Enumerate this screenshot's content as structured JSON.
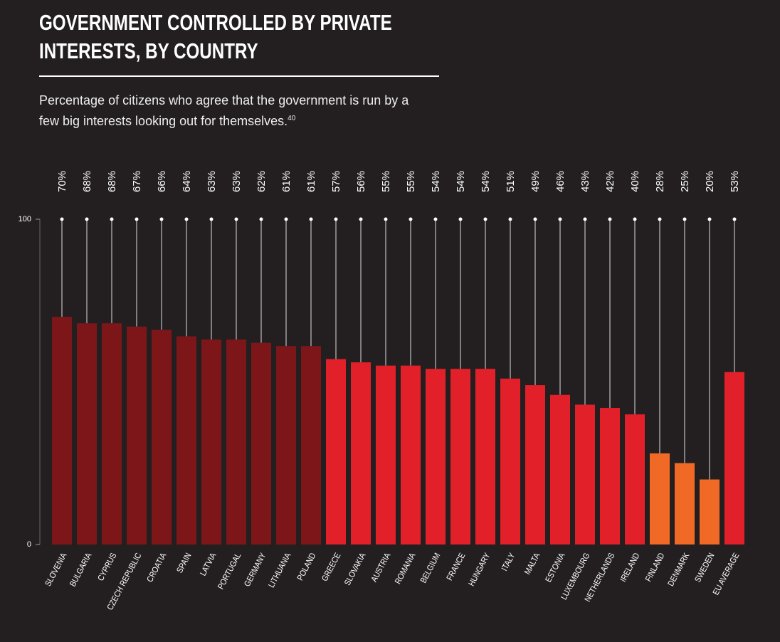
{
  "chart_data": {
    "type": "bar",
    "title": "GOVERNMENT CONTROLLED BY PRIVATE INTERESTS, BY COUNTRY",
    "subtitle": "Percentage of citizens who agree that the government is run by a few big interests looking out for themselves.",
    "subtitle_note": "40",
    "categories": [
      "SLOVENIA",
      "BULGARIA",
      "CYPRUS",
      "CZECH REPUBLIC",
      "CROATIA",
      "SPAIN",
      "LATVIA",
      "PORTUGAL",
      "GERMANY",
      "LITHUANIA",
      "POLAND",
      "GREECE",
      "SLOVAKIA",
      "AUSTRIA",
      "ROMANIA",
      "BELGIUM",
      "FRANCE",
      "HUNGARY",
      "ITALY",
      "MALTA",
      "ESTONIA",
      "LUXEMBOURG",
      "NETHERLANDS",
      "IRELAND",
      "FINLAND",
      "DENMARK",
      "SWEDEN",
      "EU AVERAGE"
    ],
    "values": [
      70,
      68,
      68,
      67,
      66,
      64,
      63,
      63,
      62,
      61,
      61,
      57,
      56,
      55,
      55,
      54,
      54,
      54,
      51,
      49,
      46,
      43,
      42,
      40,
      28,
      25,
      20,
      53
    ],
    "value_labels": [
      "70%",
      "68%",
      "68%",
      "67%",
      "66%",
      "64%",
      "63%",
      "63%",
      "62%",
      "61%",
      "61%",
      "57%",
      "56%",
      "55%",
      "55%",
      "54%",
      "54%",
      "54%",
      "51%",
      "49%",
      "46%",
      "43%",
      "42%",
      "40%",
      "28%",
      "25%",
      "20%",
      "53%"
    ],
    "colors": [
      "#7d1619",
      "#7d1619",
      "#7d1619",
      "#7d1619",
      "#7d1619",
      "#7d1619",
      "#7d1619",
      "#7d1619",
      "#7d1619",
      "#7d1619",
      "#7d1619",
      "#e2202a",
      "#e2202a",
      "#e2202a",
      "#e2202a",
      "#e2202a",
      "#e2202a",
      "#e2202a",
      "#e2202a",
      "#e2202a",
      "#e2202a",
      "#e2202a",
      "#e2202a",
      "#e2202a",
      "#f06a26",
      "#f06a26",
      "#f06a26",
      "#e2202a"
    ],
    "ylim": [
      0,
      100
    ],
    "yticks": [
      0,
      100
    ]
  }
}
